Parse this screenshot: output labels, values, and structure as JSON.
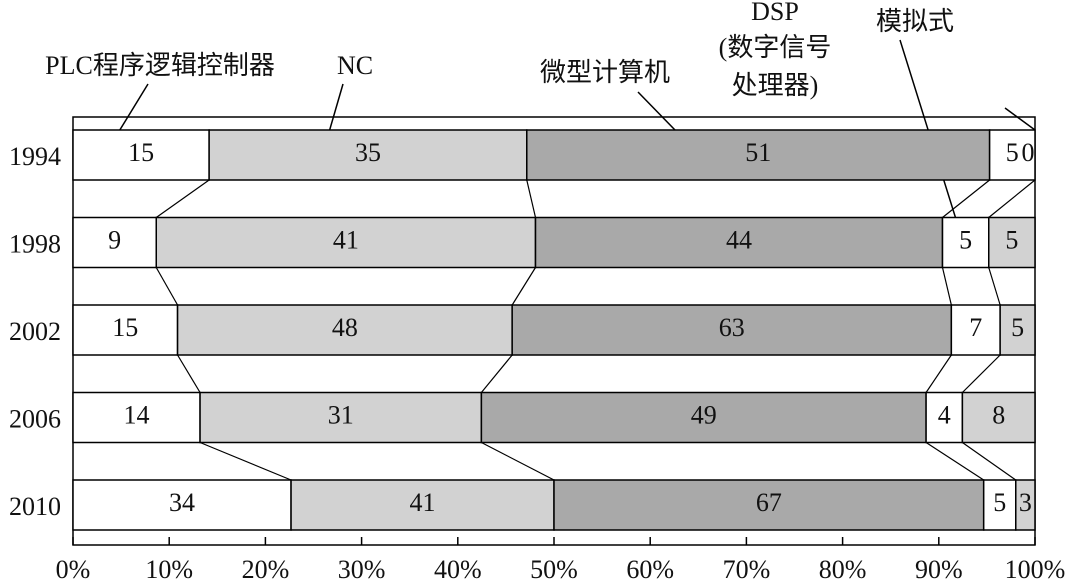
{
  "chart_data": {
    "type": "bar",
    "categories": [
      "1994",
      "1998",
      "2002",
      "2006",
      "2010"
    ],
    "series": [
      {
        "name": "PLC程序逻辑控制器",
        "color": "#ffffff",
        "values": [
          15,
          9,
          15,
          14,
          34
        ]
      },
      {
        "name": "NC",
        "color": "#d2d2d2",
        "values": [
          35,
          41,
          48,
          31,
          41
        ]
      },
      {
        "name": "微型计算机",
        "color": "#a9a9a9",
        "values": [
          51,
          44,
          63,
          49,
          67
        ]
      },
      {
        "name": "模拟式",
        "color": "#ffffff",
        "values": [
          5,
          5,
          7,
          4,
          5
        ]
      },
      {
        "name": [
          "DSP",
          "(数字信号",
          "处理器)"
        ],
        "color": "#d2d2d2",
        "values": [
          0,
          5,
          5,
          8,
          3
        ]
      }
    ],
    "xlim": [
      0,
      100
    ],
    "xticks": [
      {
        "value": 0,
        "label": "0%"
      },
      {
        "value": 10,
        "label": "10%"
      },
      {
        "value": 20,
        "label": "20%"
      },
      {
        "value": 30,
        "label": "30%"
      },
      {
        "value": 40,
        "label": "40%"
      },
      {
        "value": 50,
        "label": "50%"
      },
      {
        "value": 60,
        "label": "60%"
      },
      {
        "value": 70,
        "label": "70%"
      },
      {
        "value": 80,
        "label": "80%"
      },
      {
        "value": 90,
        "label": "90%"
      },
      {
        "value": 100,
        "label": "100%"
      }
    ]
  }
}
